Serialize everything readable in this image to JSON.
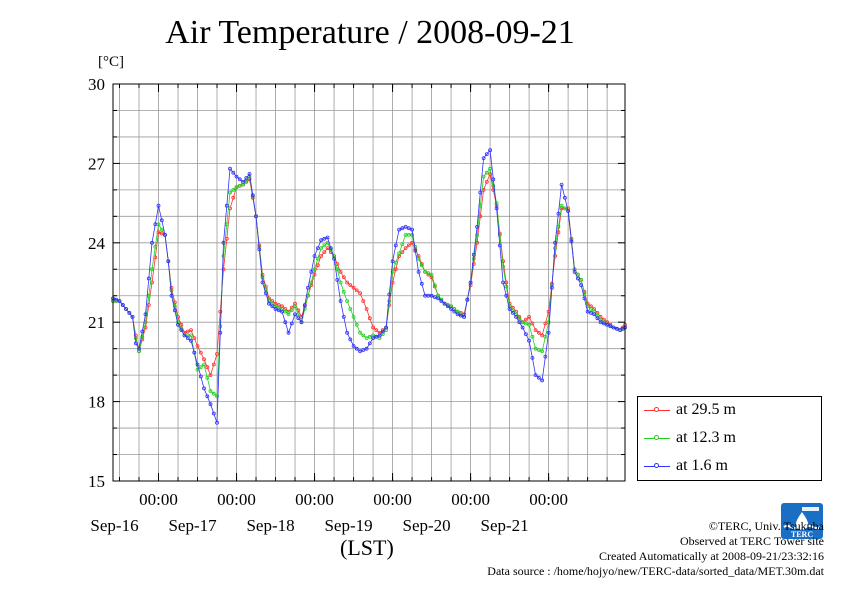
{
  "header": {
    "title": "Air Temperature / 2008-09-21",
    "unit": "[°C]"
  },
  "chart_data": {
    "type": "line",
    "title": "Air Temperature / 2008-09-21",
    "xlabel": "(LST)",
    "ylabel": "[°C]",
    "ylim": [
      15,
      30
    ],
    "yticks": [
      15,
      18,
      21,
      24,
      27,
      30
    ],
    "xlim": [
      "2008-09-15 10:00",
      "2008-09-21 23:30"
    ],
    "x_midnight_ticks": [
      "2008-09-16 00:00",
      "2008-09-17 00:00",
      "2008-09-18 00:00",
      "2008-09-19 00:00",
      "2008-09-20 00:00",
      "2008-09-21 00:00"
    ],
    "x_time_labels": [
      "00:00",
      "00:00",
      "00:00",
      "00:00",
      "00:00",
      "00:00"
    ],
    "x_day_labels": [
      "Sep-16",
      "Sep-17",
      "Sep-18",
      "Sep-19",
      "Sep-20",
      "Sep-21"
    ],
    "grid": true,
    "legend_position": "right-bottom",
    "series": [
      {
        "name": "at 29.5 m",
        "color": "#ff3030",
        "x": [
          "2008-09-15 10:00",
          "2008-09-15 12:00",
          "2008-09-15 14:00",
          "2008-09-15 16:00",
          "2008-09-15 17:00",
          "2008-09-15 18:00",
          "2008-09-15 20:00",
          "2008-09-15 22:00",
          "2008-09-16 00:00",
          "2008-09-16 02:00",
          "2008-09-16 03:00",
          "2008-09-16 04:00",
          "2008-09-16 06:00",
          "2008-09-16 08:00",
          "2008-09-16 10:00",
          "2008-09-16 12:00",
          "2008-09-16 14:00",
          "2008-09-16 16:00",
          "2008-09-16 18:00",
          "2008-09-16 20:00",
          "2008-09-16 22:00",
          "2008-09-17 00:00",
          "2008-09-17 02:00",
          "2008-09-17 04:00",
          "2008-09-17 06:00",
          "2008-09-17 08:00",
          "2008-09-17 10:00",
          "2008-09-17 12:00",
          "2008-09-17 14:00",
          "2008-09-17 16:00",
          "2008-09-17 18:00",
          "2008-09-17 20:00",
          "2008-09-17 22:00",
          "2008-09-18 00:00",
          "2008-09-18 02:00",
          "2008-09-18 04:00",
          "2008-09-18 06:00",
          "2008-09-18 08:00",
          "2008-09-18 10:00",
          "2008-09-18 12:00",
          "2008-09-18 14:00",
          "2008-09-18 16:00",
          "2008-09-18 18:00",
          "2008-09-18 20:00",
          "2008-09-18 22:00",
          "2008-09-19 00:00",
          "2008-09-19 02:00",
          "2008-09-19 04:00",
          "2008-09-19 06:00",
          "2008-09-19 08:00",
          "2008-09-19 10:00",
          "2008-09-19 12:00",
          "2008-09-19 14:00",
          "2008-09-19 16:00",
          "2008-09-19 18:00",
          "2008-09-19 20:00",
          "2008-09-19 22:00",
          "2008-09-20 00:00",
          "2008-09-20 02:00",
          "2008-09-20 04:00",
          "2008-09-20 06:00",
          "2008-09-20 08:00",
          "2008-09-20 10:00",
          "2008-09-20 12:00",
          "2008-09-20 14:00",
          "2008-09-20 16:00",
          "2008-09-20 18:00",
          "2008-09-20 20:00",
          "2008-09-20 22:00",
          "2008-09-21 00:00",
          "2008-09-21 02:00",
          "2008-09-21 04:00",
          "2008-09-21 06:00",
          "2008-09-21 08:00",
          "2008-09-21 10:00",
          "2008-09-21 12:00",
          "2008-09-21 14:00",
          "2008-09-21 16:00",
          "2008-09-21 18:00",
          "2008-09-21 20:00",
          "2008-09-21 22:00",
          "2008-09-21 23:30"
        ],
        "values": [
          21.8,
          21.8,
          21.5,
          21.2,
          20.5,
          19.9,
          20.8,
          22.5,
          24.4,
          24.3,
          23.3,
          22.3,
          21.2,
          20.6,
          20.7,
          20.1,
          19.6,
          19.0,
          19.8,
          23.0,
          25.3,
          26.1,
          26.2,
          26.4,
          25.0,
          22.8,
          21.9,
          21.7,
          21.6,
          21.4,
          21.7,
          21.2,
          22.0,
          22.8,
          23.5,
          23.8,
          23.5,
          22.9,
          22.5,
          22.3,
          22.1,
          21.5,
          20.8,
          20.6,
          20.8,
          22.5,
          23.5,
          23.8,
          24.0,
          23.5,
          22.9,
          22.7,
          22.0,
          21.7,
          21.6,
          21.4,
          21.3,
          22.4,
          24.0,
          26.0,
          26.6,
          25.4,
          23.3,
          21.7,
          21.4,
          21.0,
          21.2,
          20.7,
          20.5,
          21.4,
          23.5,
          25.3,
          25.3,
          23.0,
          22.6,
          21.7,
          21.5,
          21.2,
          21.0,
          20.8,
          20.7,
          20.9
        ]
      },
      {
        "name": "at 12.3 m",
        "color": "#20d020",
        "x": [
          "2008-09-15 10:00",
          "2008-09-15 12:00",
          "2008-09-15 14:00",
          "2008-09-15 16:00",
          "2008-09-15 17:00",
          "2008-09-15 18:00",
          "2008-09-15 20:00",
          "2008-09-15 22:00",
          "2008-09-16 00:00",
          "2008-09-16 02:00",
          "2008-09-16 03:00",
          "2008-09-16 04:00",
          "2008-09-16 06:00",
          "2008-09-16 08:00",
          "2008-09-16 10:00",
          "2008-09-16 12:00",
          "2008-09-16 14:00",
          "2008-09-16 16:00",
          "2008-09-16 18:00",
          "2008-09-16 20:00",
          "2008-09-16 22:00",
          "2008-09-17 00:00",
          "2008-09-17 02:00",
          "2008-09-17 04:00",
          "2008-09-17 06:00",
          "2008-09-17 08:00",
          "2008-09-17 10:00",
          "2008-09-17 12:00",
          "2008-09-17 14:00",
          "2008-09-17 16:00",
          "2008-09-17 18:00",
          "2008-09-17 20:00",
          "2008-09-17 22:00",
          "2008-09-18 00:00",
          "2008-09-18 02:00",
          "2008-09-18 04:00",
          "2008-09-18 06:00",
          "2008-09-18 08:00",
          "2008-09-18 10:00",
          "2008-09-18 12:00",
          "2008-09-18 14:00",
          "2008-09-18 16:00",
          "2008-09-18 18:00",
          "2008-09-18 20:00",
          "2008-09-18 22:00",
          "2008-09-19 00:00",
          "2008-09-19 02:00",
          "2008-09-19 04:00",
          "2008-09-19 06:00",
          "2008-09-19 08:00",
          "2008-09-19 10:00",
          "2008-09-19 12:00",
          "2008-09-19 14:00",
          "2008-09-19 16:00",
          "2008-09-19 18:00",
          "2008-09-19 20:00",
          "2008-09-19 22:00",
          "2008-09-20 00:00",
          "2008-09-20 02:00",
          "2008-09-20 04:00",
          "2008-09-20 06:00",
          "2008-09-20 08:00",
          "2008-09-20 10:00",
          "2008-09-20 12:00",
          "2008-09-20 14:00",
          "2008-09-20 16:00",
          "2008-09-20 18:00",
          "2008-09-20 20:00",
          "2008-09-20 22:00",
          "2008-09-21 00:00",
          "2008-09-21 02:00",
          "2008-09-21 04:00",
          "2008-09-21 06:00",
          "2008-09-21 08:00",
          "2008-09-21 10:00",
          "2008-09-21 12:00",
          "2008-09-21 14:00",
          "2008-09-21 16:00",
          "2008-09-21 18:00",
          "2008-09-21 20:00",
          "2008-09-21 22:00",
          "2008-09-21 23:30"
        ],
        "values": [
          21.8,
          21.8,
          21.5,
          21.2,
          20.4,
          19.9,
          21.0,
          23.0,
          24.7,
          24.3,
          23.3,
          22.2,
          21.0,
          20.5,
          20.5,
          19.2,
          19.4,
          18.4,
          18.2,
          23.5,
          25.9,
          26.1,
          26.2,
          26.5,
          25.0,
          22.7,
          21.8,
          21.6,
          21.5,
          21.3,
          21.6,
          21.0,
          22.0,
          23.0,
          23.8,
          24.0,
          23.5,
          22.5,
          21.8,
          21.2,
          20.6,
          20.4,
          20.5,
          20.4,
          20.7,
          22.9,
          23.6,
          24.3,
          24.3,
          23.4,
          22.9,
          22.8,
          22.0,
          21.7,
          21.6,
          21.4,
          21.2,
          22.5,
          24.3,
          26.5,
          26.8,
          25.5,
          23.1,
          21.6,
          21.3,
          21.0,
          20.9,
          20.0,
          19.9,
          21.0,
          23.8,
          25.4,
          25.2,
          23.0,
          22.6,
          21.6,
          21.4,
          21.1,
          20.9,
          20.8,
          20.7,
          20.8
        ]
      },
      {
        "name": "at 1.6 m",
        "color": "#3030ff",
        "x": [
          "2008-09-15 10:00",
          "2008-09-15 12:00",
          "2008-09-15 14:00",
          "2008-09-15 16:00",
          "2008-09-15 17:00",
          "2008-09-15 18:00",
          "2008-09-15 20:00",
          "2008-09-15 22:00",
          "2008-09-16 00:00",
          "2008-09-16 02:00",
          "2008-09-16 03:00",
          "2008-09-16 04:00",
          "2008-09-16 06:00",
          "2008-09-16 08:00",
          "2008-09-16 10:00",
          "2008-09-16 12:00",
          "2008-09-16 14:00",
          "2008-09-16 16:00",
          "2008-09-16 18:00",
          "2008-09-16 20:00",
          "2008-09-16 22:00",
          "2008-09-17 00:00",
          "2008-09-17 02:00",
          "2008-09-17 04:00",
          "2008-09-17 06:00",
          "2008-09-17 08:00",
          "2008-09-17 10:00",
          "2008-09-17 12:00",
          "2008-09-17 14:00",
          "2008-09-17 16:00",
          "2008-09-17 18:00",
          "2008-09-17 20:00",
          "2008-09-17 22:00",
          "2008-09-18 00:00",
          "2008-09-18 02:00",
          "2008-09-18 04:00",
          "2008-09-18 06:00",
          "2008-09-18 08:00",
          "2008-09-18 10:00",
          "2008-09-18 12:00",
          "2008-09-18 14:00",
          "2008-09-18 16:00",
          "2008-09-18 18:00",
          "2008-09-18 20:00",
          "2008-09-18 22:00",
          "2008-09-19 00:00",
          "2008-09-19 02:00",
          "2008-09-19 04:00",
          "2008-09-19 06:00",
          "2008-09-19 08:00",
          "2008-09-19 10:00",
          "2008-09-19 12:00",
          "2008-09-19 14:00",
          "2008-09-19 16:00",
          "2008-09-19 18:00",
          "2008-09-19 20:00",
          "2008-09-19 22:00",
          "2008-09-20 00:00",
          "2008-09-20 02:00",
          "2008-09-20 04:00",
          "2008-09-20 06:00",
          "2008-09-20 08:00",
          "2008-09-20 10:00",
          "2008-09-20 12:00",
          "2008-09-20 14:00",
          "2008-09-20 16:00",
          "2008-09-20 18:00",
          "2008-09-20 20:00",
          "2008-09-20 22:00",
          "2008-09-21 00:00",
          "2008-09-21 02:00",
          "2008-09-21 04:00",
          "2008-09-21 06:00",
          "2008-09-21 08:00",
          "2008-09-21 10:00",
          "2008-09-21 12:00",
          "2008-09-21 14:00",
          "2008-09-21 16:00",
          "2008-09-21 18:00",
          "2008-09-21 20:00",
          "2008-09-21 22:00",
          "2008-09-21 23:30"
        ],
        "values": [
          21.9,
          21.8,
          21.5,
          21.2,
          20.2,
          20.0,
          21.3,
          24.0,
          25.4,
          24.3,
          23.3,
          22.0,
          20.9,
          20.5,
          20.3,
          19.4,
          18.5,
          17.9,
          17.2,
          24.0,
          26.8,
          26.5,
          26.3,
          26.6,
          25.0,
          22.5,
          21.7,
          21.5,
          21.4,
          20.6,
          21.3,
          21.0,
          22.3,
          23.5,
          24.1,
          24.2,
          23.4,
          21.8,
          20.6,
          20.1,
          19.9,
          20.0,
          20.4,
          20.5,
          20.8,
          23.3,
          24.5,
          24.6,
          24.5,
          22.9,
          22.0,
          22.0,
          21.9,
          21.7,
          21.5,
          21.3,
          21.2,
          22.5,
          24.6,
          27.2,
          27.5,
          25.3,
          22.5,
          21.5,
          21.2,
          20.8,
          20.3,
          19.0,
          18.8,
          20.6,
          24.0,
          26.2,
          25.2,
          22.9,
          22.4,
          21.4,
          21.3,
          21.0,
          20.9,
          20.8,
          20.7,
          20.8
        ]
      }
    ]
  },
  "footer": {
    "copyright": "©TERC, Univ. Tsukuba",
    "observed": "Observed at TERC Tower site",
    "created": "Created Automatically at 2008-09-21/23:32:16",
    "source": "Data source : /home/hojyo/new/TERC-data/sorted_data/MET.30m.dat"
  },
  "logo": {
    "text": "TERC",
    "color": "#1a6fc4"
  }
}
